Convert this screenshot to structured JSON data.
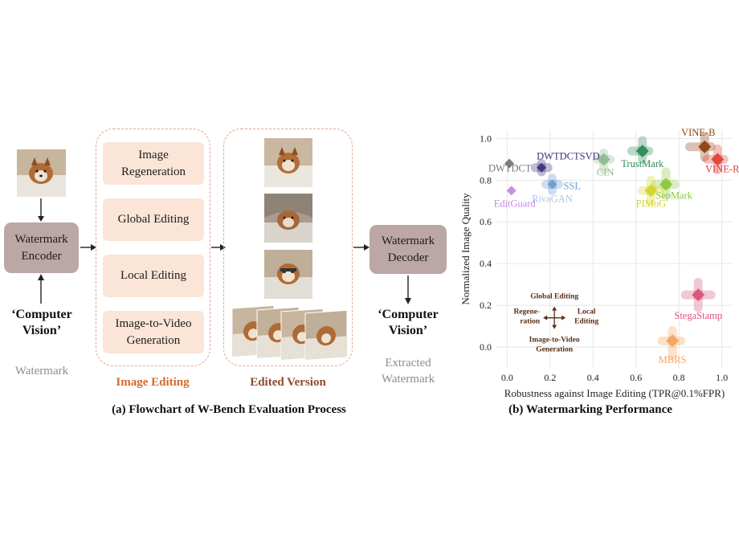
{
  "flowchart": {
    "encoder_label": "Watermark Encoder",
    "encoder_lines": [
      "Watermark",
      "Encoder"
    ],
    "decoder_lines": [
      "Watermark",
      "Decoder"
    ],
    "input_text_lines": [
      "‘Computer",
      "Vision’"
    ],
    "output_text_lines": [
      "‘Computer",
      "Vision’"
    ],
    "watermark_label": "Watermark",
    "extracted_lines": [
      "Extracted",
      "Watermark"
    ],
    "editing_steps": [
      {
        "lines": [
          "Image",
          "Regeneration"
        ]
      },
      {
        "lines": [
          "Global Editing"
        ]
      },
      {
        "lines": [
          "Local Editing"
        ]
      },
      {
        "lines": [
          "Image-to-Video",
          "Generation"
        ]
      }
    ],
    "image_editing_title": "Image Editing",
    "edited_version_title": "Edited Version",
    "caption": "(a) Flowchart of W-Bench Evaluation Process",
    "photo_description_icon": "dog-photo-icon"
  },
  "chart_data": {
    "type": "scatter",
    "caption": "(b) Watermarking Performance",
    "xlabel": "Robustness against Image Editing (TPR@0.1%FPR)",
    "ylabel": "Normalized Image Quality",
    "xlim": [
      -0.05,
      1.05
    ],
    "ylim": [
      -0.1,
      1.04
    ],
    "xticks": [
      "0.0",
      "0.2",
      "0.4",
      "0.6",
      "0.8",
      "1.0"
    ],
    "xtick_values": [
      0,
      0.2,
      0.4,
      0.6,
      0.8,
      1.0
    ],
    "yticks": [
      "0.0",
      "0.2",
      "0.4",
      "0.6",
      "0.8",
      "1.0"
    ],
    "ytick_values": [
      0,
      0.2,
      0.4,
      0.6,
      0.8,
      1.0
    ],
    "grid": true,
    "legend_axes": {
      "top": "Global Editing",
      "left_lines": [
        "Regene-",
        "ration"
      ],
      "right_lines": [
        "Local",
        "Editing"
      ],
      "bottom_lines": [
        "Image-to-Video",
        "Generation"
      ]
    },
    "points": [
      {
        "name": "VINE-B",
        "x": 0.92,
        "y": 0.96,
        "color": "#8b4513",
        "arms": {
          "up": 0.05,
          "down": 0.05,
          "left": 0.07,
          "right": 0.03
        }
      },
      {
        "name": "VINE-R",
        "x": 0.98,
        "y": 0.9,
        "color": "#e0413a",
        "arms": {
          "up": 0.05,
          "down": 0.05,
          "left": 0.05,
          "right": 0.03
        }
      },
      {
        "name": "TrustMark",
        "x": 0.63,
        "y": 0.94,
        "color": "#2e8b57",
        "arms": {
          "up": 0.05,
          "down": 0.04,
          "left": 0.05,
          "right": 0.03
        }
      },
      {
        "name": "CIN",
        "x": 0.45,
        "y": 0.9,
        "color": "#8fbc8f",
        "arms": {
          "up": 0.03,
          "down": 0.05,
          "left": 0.03,
          "right": 0.03
        }
      },
      {
        "name": "SepMark",
        "x": 0.74,
        "y": 0.78,
        "color": "#8dc63f",
        "arms": {
          "up": 0.06,
          "down": 0.05,
          "left": 0.05,
          "right": 0.04
        }
      },
      {
        "name": "PIMoG",
        "x": 0.67,
        "y": 0.75,
        "color": "#d4d42a",
        "arms": {
          "up": 0.05,
          "down": 0.05,
          "left": 0.04,
          "right": 0.04
        }
      },
      {
        "name": "DWTDCTSVD",
        "x": 0.16,
        "y": 0.86,
        "color": "#3c3580",
        "arms": {
          "up": 0.02,
          "down": 0.02,
          "left": 0.03,
          "right": 0.03
        }
      },
      {
        "name": "DWTDCT",
        "x": 0.01,
        "y": 0.88,
        "color": "#777777",
        "arms": {
          "up": 0.0,
          "down": 0.0,
          "left": 0.0,
          "right": 0.0
        }
      },
      {
        "name": "SSL",
        "x": 0.21,
        "y": 0.78,
        "color": "#6b9bd1",
        "arms": {
          "up": 0.03,
          "down": 0.03,
          "left": 0.03,
          "right": 0.03
        }
      },
      {
        "name": "RivaGAN",
        "x": 0.21,
        "y": 0.78,
        "color": "#a7c7e7",
        "arms": {
          "up": 0.0,
          "down": 0.0,
          "left": 0.0,
          "right": 0.0
        }
      },
      {
        "name": "EditGuard",
        "x": 0.02,
        "y": 0.75,
        "color": "#c48ae0",
        "arms": {
          "up": 0.0,
          "down": 0.0,
          "left": 0.0,
          "right": 0.0
        }
      },
      {
        "name": "StegaStamp",
        "x": 0.89,
        "y": 0.25,
        "color": "#d4567a",
        "arms": {
          "up": 0.06,
          "down": 0.06,
          "left": 0.06,
          "right": 0.06
        }
      },
      {
        "name": "MBRS",
        "x": 0.77,
        "y": 0.03,
        "color": "#f4a460",
        "arms": {
          "up": 0.05,
          "down": 0.07,
          "left": 0.05,
          "right": 0.04
        }
      }
    ]
  }
}
